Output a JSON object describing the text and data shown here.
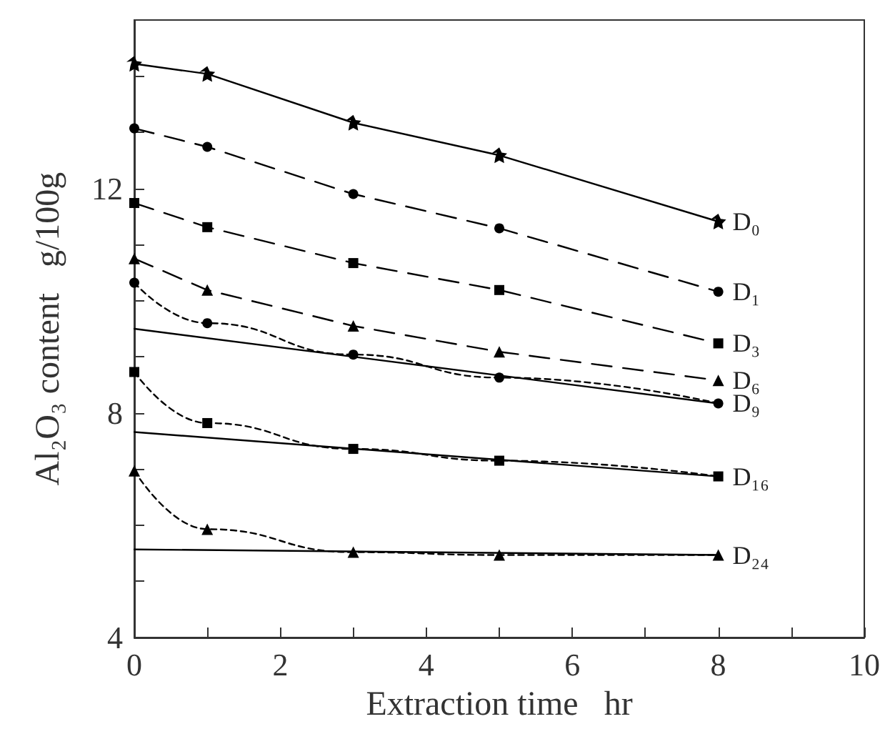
{
  "chart_data": {
    "type": "line",
    "xlabel": "Extraction time   hr",
    "ylabel": "Al₂O₃ content   g/100g",
    "x": [
      0,
      1,
      3,
      5,
      8
    ],
    "xlim": [
      0,
      10
    ],
    "ylim": [
      4,
      15
    ],
    "xticks": [
      0,
      {
        "value": 1,
        "label": null
      },
      2,
      {
        "value": 3,
        "label": null
      },
      4,
      {
        "value": 5,
        "label": null
      },
      6,
      {
        "value": 7,
        "label": null
      },
      8,
      {
        "value": 9,
        "label": null
      },
      10
    ],
    "yticks": [
      4,
      {
        "value": 5,
        "label": null
      },
      {
        "value": 6,
        "label": null
      },
      {
        "value": 7,
        "label": null
      },
      8,
      {
        "value": 9,
        "label": null
      },
      {
        "value": 10,
        "label": null
      },
      {
        "value": 11,
        "label": null
      },
      12,
      {
        "value": 13,
        "label": null
      },
      {
        "value": 14,
        "label": null
      }
    ],
    "grid": false,
    "legend": false,
    "series": [
      {
        "name": "D₀",
        "color": "#000000",
        "marker": "star",
        "line_style": "solid",
        "values": [
          14.22,
          14.04,
          13.17,
          12.59,
          11.41
        ]
      },
      {
        "name": "D₁",
        "color": "#000000",
        "marker": "circle",
        "line_style": "dashed",
        "values": [
          13.07,
          12.74,
          11.9,
          11.29,
          10.16
        ]
      },
      {
        "name": "D₃",
        "color": "#000000",
        "marker": "square",
        "line_style": "dashed",
        "values": [
          11.74,
          11.31,
          10.67,
          10.19,
          9.24
        ]
      },
      {
        "name": "D₆",
        "color": "#000000",
        "marker": "triangle",
        "line_style": "dashed",
        "values": [
          10.75,
          10.19,
          9.55,
          9.09,
          8.58
        ]
      },
      {
        "name": "D₉",
        "color": "#000000",
        "marker": "circle",
        "line_style": "dotted",
        "values": [
          10.32,
          9.6,
          9.04,
          8.63,
          8.17
        ]
      },
      {
        "color": "#000000",
        "marker": "none",
        "line_style": "solid",
        "values": [
          9.5,
          null,
          null,
          null,
          8.17
        ]
      },
      {
        "name": "D₁₆",
        "color": "#000000",
        "marker": "square",
        "line_style": "dotted",
        "values": [
          8.73,
          7.82,
          7.36,
          7.15,
          6.87
        ]
      },
      {
        "color": "#000000",
        "marker": "none",
        "line_style": "solid",
        "values": [
          7.66,
          null,
          null,
          null,
          6.87
        ]
      },
      {
        "name": "D₂₄",
        "color": "#000000",
        "marker": "triangle",
        "line_style": "dotted",
        "values": [
          6.97,
          5.93,
          5.52,
          5.47,
          5.47
        ]
      },
      {
        "color": "#000000",
        "marker": "none",
        "line_style": "solid",
        "values": [
          5.57,
          null,
          null,
          null,
          5.47
        ]
      }
    ]
  }
}
